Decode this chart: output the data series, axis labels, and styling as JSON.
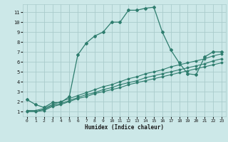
{
  "xlabel": "Humidex (Indice chaleur)",
  "bg_color": "#cce8e8",
  "grid_color": "#aacccc",
  "line_color": "#2e7d6e",
  "xlim": [
    -0.5,
    23.5
  ],
  "ylim": [
    0.5,
    11.8
  ],
  "xticks": [
    0,
    1,
    2,
    3,
    4,
    5,
    6,
    7,
    8,
    9,
    10,
    11,
    12,
    13,
    14,
    15,
    16,
    17,
    18,
    19,
    20,
    21,
    22,
    23
  ],
  "yticks": [
    1,
    2,
    3,
    4,
    5,
    6,
    7,
    8,
    9,
    10,
    11
  ],
  "series1_x": [
    0,
    1,
    2,
    3,
    4,
    5,
    6,
    7,
    8,
    9,
    10,
    11,
    12,
    13,
    14,
    15,
    16,
    17,
    18,
    19,
    20,
    21,
    22,
    23
  ],
  "series1_y": [
    2.2,
    1.7,
    1.4,
    1.9,
    1.9,
    2.5,
    6.7,
    7.9,
    8.6,
    9.0,
    10.0,
    10.0,
    11.2,
    11.2,
    11.4,
    11.5,
    9.0,
    7.2,
    5.9,
    4.8,
    4.7,
    6.5,
    7.0,
    7.0
  ],
  "series2_x": [
    0,
    1,
    2,
    3,
    4,
    5,
    6,
    7,
    8,
    9,
    10,
    11,
    12,
    13,
    14,
    15,
    16,
    17,
    18,
    19,
    20,
    21,
    22,
    23
  ],
  "series2_y": [
    1.1,
    1.1,
    1.3,
    1.7,
    2.0,
    2.3,
    2.6,
    2.9,
    3.2,
    3.5,
    3.7,
    4.0,
    4.3,
    4.5,
    4.8,
    5.0,
    5.2,
    5.5,
    5.7,
    5.9,
    6.1,
    6.3,
    6.6,
    6.8
  ],
  "series3_x": [
    0,
    1,
    2,
    3,
    4,
    5,
    6,
    7,
    8,
    9,
    10,
    11,
    12,
    13,
    14,
    15,
    16,
    17,
    18,
    19,
    20,
    21,
    22,
    23
  ],
  "series3_y": [
    1.0,
    1.0,
    1.2,
    1.6,
    1.8,
    2.1,
    2.4,
    2.7,
    2.9,
    3.2,
    3.4,
    3.7,
    3.9,
    4.1,
    4.4,
    4.6,
    4.8,
    5.0,
    5.2,
    5.4,
    5.6,
    5.8,
    6.1,
    6.3
  ],
  "series4_x": [
    0,
    1,
    2,
    3,
    4,
    5,
    6,
    7,
    8,
    9,
    10,
    11,
    12,
    13,
    14,
    15,
    16,
    17,
    18,
    19,
    20,
    21,
    22,
    23
  ],
  "series4_y": [
    1.0,
    1.0,
    1.1,
    1.5,
    1.7,
    2.0,
    2.3,
    2.5,
    2.8,
    3.0,
    3.2,
    3.4,
    3.7,
    3.9,
    4.1,
    4.3,
    4.5,
    4.7,
    4.9,
    5.1,
    5.3,
    5.5,
    5.7,
    5.9
  ]
}
